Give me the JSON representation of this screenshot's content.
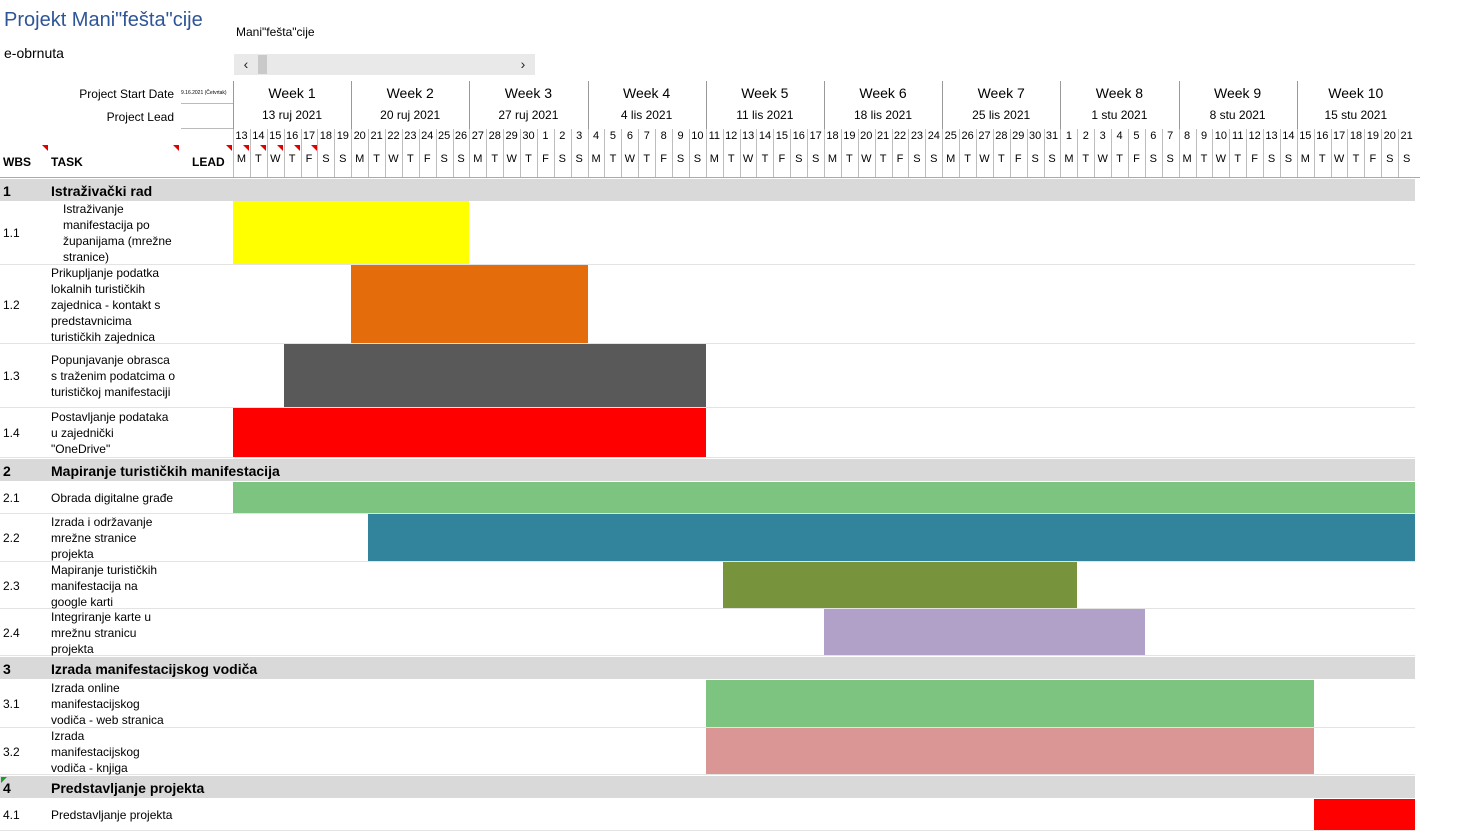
{
  "header": {
    "title": "Projekt Mani\"fešta\"cije",
    "subtitle": "e-obrnuta",
    "project_name": "Mani\"fešta\"cije",
    "start_label": "Project Start Date",
    "start_value": "9.16.2021 (Četvrtak)",
    "lead_label": "Project Lead",
    "lead_value": ""
  },
  "scrollbar": {
    "left_icon": "arrow-left-icon",
    "right_icon": "arrow-right-icon",
    "left_glyph": "‹",
    "right_glyph": "›"
  },
  "columns": {
    "wbs": "WBS",
    "task": "TASK",
    "lead": "LEAD"
  },
  "weeks": [
    {
      "label": "Week 1",
      "date": "13 ruj 2021"
    },
    {
      "label": "Week 2",
      "date": "20 ruj 2021"
    },
    {
      "label": "Week 3",
      "date": "27 ruj 2021"
    },
    {
      "label": "Week 4",
      "date": "4 lis 2021"
    },
    {
      "label": "Week 5",
      "date": "11 lis 2021"
    },
    {
      "label": "Week 6",
      "date": "18 lis 2021"
    },
    {
      "label": "Week 7",
      "date": "25 lis 2021"
    },
    {
      "label": "Week 8",
      "date": "1 stu 2021"
    },
    {
      "label": "Week 9",
      "date": "8 stu 2021"
    },
    {
      "label": "Week 10",
      "date": "15 stu 2021"
    }
  ],
  "day_numbers": [
    "13",
    "14",
    "15",
    "16",
    "17",
    "18",
    "19",
    "20",
    "21",
    "22",
    "23",
    "24",
    "25",
    "26",
    "27",
    "28",
    "29",
    "30",
    "1",
    "2",
    "3",
    "4",
    "5",
    "6",
    "7",
    "8",
    "9",
    "10",
    "11",
    "12",
    "13",
    "14",
    "15",
    "16",
    "17",
    "18",
    "19",
    "20",
    "21",
    "22",
    "23",
    "24",
    "25",
    "26",
    "27",
    "28",
    "29",
    "30",
    "31",
    "1",
    "2",
    "3",
    "4",
    "5",
    "6",
    "7",
    "8",
    "9",
    "10",
    "11",
    "12",
    "13",
    "14",
    "15",
    "16",
    "17",
    "18",
    "19",
    "20",
    "21"
  ],
  "day_letters": [
    "M",
    "T",
    "W",
    "T",
    "F",
    "S",
    "S"
  ],
  "rows": [
    {
      "type": "section",
      "wbs": "1",
      "name": "Istraživački rad"
    },
    {
      "type": "task",
      "wbs": "1.1",
      "name": "Istraživanje\nmanifestacija po\nžupanijama (mrežne\nstranice)",
      "indent": true,
      "start_day": 0,
      "end_day": 14,
      "color": "#ffff00"
    },
    {
      "type": "task",
      "wbs": "1.2",
      "name": "Prikupljanje podatka\nlokalnih turističkih\nzajednica - kontakt s\npredstavnicima\nturističkih zajednica",
      "start_day": 7,
      "end_day": 21,
      "color": "#e46c0a"
    },
    {
      "type": "task",
      "wbs": "1.3",
      "name": "Popunjavanje obrasca\ns traženim podatcima o\nturističkoj manifestaciji",
      "start_day": 3,
      "end_day": 28,
      "color": "#595959"
    },
    {
      "type": "task",
      "wbs": "1.4",
      "name": "Postavljanje podataka\nu zajednički\n\"OneDrive\"",
      "start_day": 0,
      "end_day": 28,
      "color": "#ff0000"
    },
    {
      "type": "section",
      "wbs": "2",
      "name": "Mapiranje turističkih manifestacija"
    },
    {
      "type": "task",
      "wbs": "2.1",
      "name": "Obrada digitalne građe",
      "start_day": 0,
      "end_day": 70,
      "color": "#7cc47f"
    },
    {
      "type": "task",
      "wbs": "2.2",
      "name": "Izrada i održavanje\nmrežne stranice\nprojekta",
      "start_day": 8,
      "end_day": 70,
      "color": "#31849b"
    },
    {
      "type": "task",
      "wbs": "2.3",
      "name": "Mapiranje turističkih\nmanifestacija na\ngoogle karti",
      "start_day": 29,
      "end_day": 50,
      "color": "#77933c"
    },
    {
      "type": "task",
      "wbs": "2.4",
      "name": "Integriranje karte u\nmrežnu stranicu\nprojekta",
      "start_day": 35,
      "end_day": 54,
      "color": "#b1a0c7"
    },
    {
      "type": "section",
      "wbs": "3",
      "name": "Izrada manifestacijskog vodiča"
    },
    {
      "type": "task",
      "wbs": "3.1",
      "name": "Izrada online\nmanifestacijskog\nvodiča - web stranica",
      "start_day": 28,
      "end_day": 64,
      "color": "#7cc47f"
    },
    {
      "type": "task",
      "wbs": "3.2",
      "name": "Izrada\nmanifestacijskog\nvodiča - knjiga",
      "start_day": 28,
      "end_day": 64,
      "color": "#da9694"
    },
    {
      "type": "section",
      "wbs": "4",
      "name": "Predstavljanje projekta"
    },
    {
      "type": "task",
      "wbs": "4.1",
      "name": "Predstavljanje projekta",
      "start_day": 64,
      "end_day": 70,
      "color": "#ff0000"
    }
  ]
}
